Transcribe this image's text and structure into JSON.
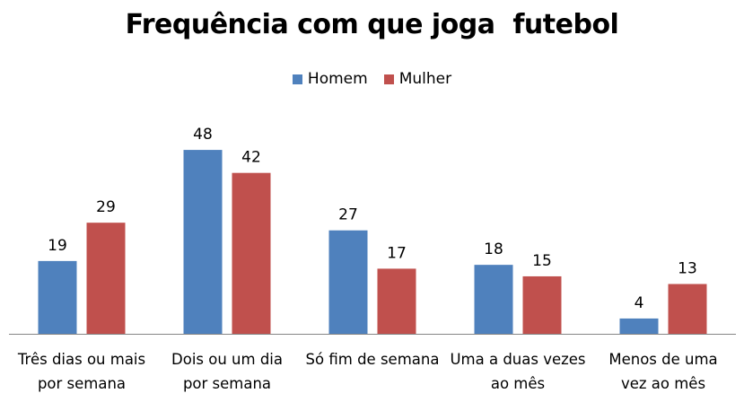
{
  "chart_data": {
    "type": "bar",
    "title": "Frequência com que joga  futebol",
    "categories": [
      [
        "Três dias ou mais",
        "por semana"
      ],
      [
        "Dois ou um dia",
        "por semana"
      ],
      [
        "Só fim de semana"
      ],
      [
        "Uma a duas vezes",
        "ao mês"
      ],
      [
        "Menos de uma",
        "vez ao mês"
      ]
    ],
    "series": [
      {
        "name": "Homem",
        "color": "#4f81bd",
        "values": [
          19,
          48,
          27,
          18,
          4
        ]
      },
      {
        "name": "Mulher",
        "color": "#c0504d",
        "values": [
          29,
          42,
          17,
          15,
          13
        ]
      }
    ],
    "ylim": [
      0,
      52
    ],
    "grid": false,
    "legend_position": "top-center",
    "data_labels": true
  }
}
